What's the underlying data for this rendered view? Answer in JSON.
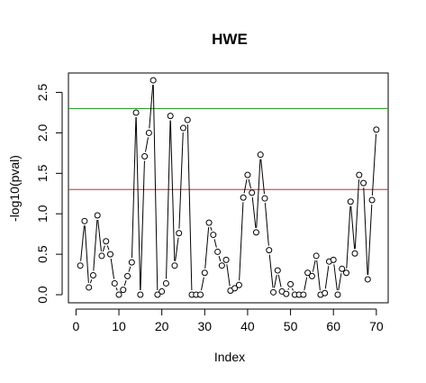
{
  "chart_data": {
    "type": "line",
    "title": "HWE",
    "xlabel": "Index",
    "ylabel": "-log10(pval)",
    "xlim": [
      -1.76,
      72.76
    ],
    "ylim": [
      -0.1,
      2.74
    ],
    "xticks": [
      0,
      10,
      20,
      30,
      40,
      50,
      60,
      70
    ],
    "yticks": [
      0.0,
      0.5,
      1.0,
      1.5,
      2.0,
      2.5
    ],
    "ytick_labels": [
      "0.0",
      "0.5",
      "1.0",
      "1.5",
      "2.0",
      "2.5"
    ],
    "grid": false,
    "plot_style": "b",
    "x": [
      1,
      2,
      3,
      4,
      5,
      6,
      7,
      8,
      9,
      10,
      11,
      12,
      13,
      14,
      15,
      16,
      17,
      18,
      19,
      20,
      21,
      22,
      23,
      24,
      25,
      26,
      27,
      28,
      29,
      30,
      31,
      32,
      33,
      34,
      35,
      36,
      37,
      38,
      39,
      40,
      41,
      42,
      43,
      44,
      45,
      46,
      47,
      48,
      49,
      50,
      51,
      52,
      53,
      54,
      55,
      56,
      57,
      58,
      59,
      60,
      61,
      62,
      63,
      64,
      65,
      66,
      67,
      68,
      69,
      70
    ],
    "y": [
      0.36,
      0.91,
      0.09,
      0.24,
      0.98,
      0.48,
      0.66,
      0.5,
      0.14,
      0.0,
      0.06,
      0.23,
      0.4,
      2.25,
      0.0,
      1.71,
      2.0,
      2.65,
      0.0,
      0.04,
      0.14,
      2.21,
      0.36,
      0.76,
      2.06,
      2.16,
      0.0,
      0.0,
      0.0,
      0.27,
      0.89,
      0.74,
      0.53,
      0.36,
      0.43,
      0.05,
      0.08,
      0.12,
      1.2,
      1.48,
      1.26,
      0.77,
      1.73,
      1.19,
      0.55,
      0.03,
      0.3,
      0.04,
      0.01,
      0.13,
      0.0,
      0.0,
      0.0,
      0.27,
      0.23,
      0.48,
      0.0,
      0.02,
      0.41,
      0.43,
      0.0,
      0.32,
      0.27,
      1.15,
      0.51,
      1.48,
      1.38,
      0.19,
      1.17,
      2.04
    ],
    "reference_lines": [
      {
        "y": 1.3,
        "color": "#d62728"
      },
      {
        "y": 2.3,
        "color": "#2ca02c"
      }
    ],
    "colors": {
      "points": "#000000",
      "lines": "#000000",
      "red_line": "#d62728",
      "green_line": "#2ca02c"
    }
  }
}
